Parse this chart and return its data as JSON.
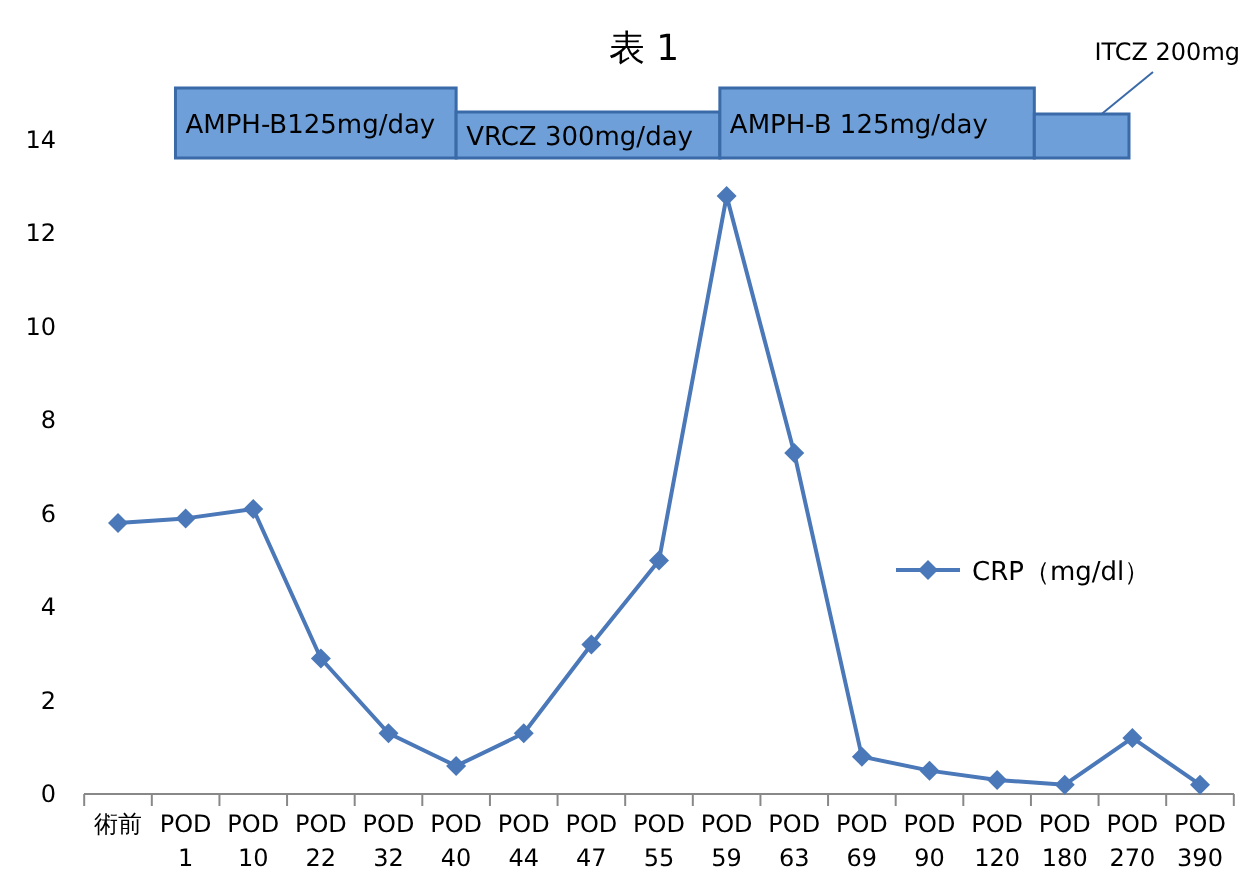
{
  "chart_data": {
    "type": "line",
    "title": "表 1",
    "categories": [
      "術前",
      "POD 1",
      "POD 10",
      "POD 22",
      "POD 32",
      "POD 40",
      "POD 44",
      "POD 47",
      "POD 55",
      "POD 59",
      "POD 63",
      "POD 69",
      "POD 90",
      "POD 120",
      "POD 180",
      "POD 270",
      "POD 390"
    ],
    "series": [
      {
        "name": "CRP（mg/dl）",
        "color": "#4a78b8",
        "values": [
          5.8,
          5.9,
          6.1,
          2.9,
          1.3,
          0.6,
          1.3,
          3.2,
          5.0,
          12.8,
          7.3,
          0.8,
          0.5,
          0.3,
          0.2,
          1.2,
          0.2
        ]
      }
    ],
    "ylim": [
      0,
      14
    ],
    "yticks": [
      0,
      2,
      4,
      6,
      8,
      10,
      12,
      14
    ],
    "grid": false,
    "legend": "right",
    "marker": "diamond",
    "line_style": "solid",
    "annotations": [
      "AMPH-B125mg/day",
      "VRCZ 300mg/day",
      "AMPH-B 125mg/day",
      "ITCZ 200mg"
    ]
  }
}
